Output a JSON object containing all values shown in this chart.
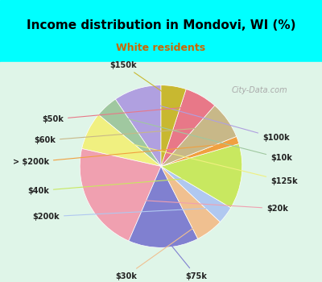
{
  "title": "Income distribution in Mondovi, WI (%)",
  "subtitle": "White residents",
  "title_color": "#000000",
  "subtitle_color": "#cc6600",
  "background_top": "#00ffff",
  "background_bottom": "#e0f0e0",
  "labels": [
    "$100k",
    "$10k",
    "$125k",
    "$20k",
    "$75k",
    "$30k",
    "$200k",
    "$40k",
    "> $200k",
    "$60k",
    "$50k",
    "$150k"
  ],
  "values": [
    9.5,
    4.5,
    7.5,
    22.0,
    14.0,
    5.5,
    3.5,
    13.0,
    1.5,
    7.5,
    6.5,
    5.0
  ],
  "colors": [
    "#b0a0e0",
    "#a0c8a0",
    "#f0f080",
    "#f0a0b0",
    "#8080d0",
    "#f0c090",
    "#b0c8f0",
    "#c8e860",
    "#f0a040",
    "#c8b888",
    "#e87888",
    "#c8b830"
  ],
  "startangle": 90,
  "figsize": [
    4.0,
    3.5
  ],
  "dpi": 100
}
